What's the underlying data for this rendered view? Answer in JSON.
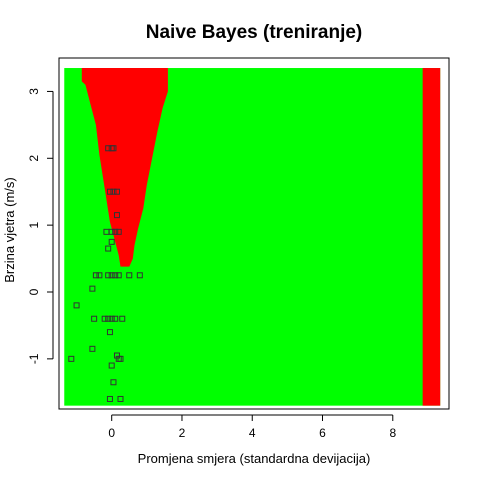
{
  "chart_data": {
    "type": "scatter",
    "title": "Naive Bayes (treniranje)",
    "xlabel": "Promjena smjera (standardna devijacija)",
    "ylabel": "Brzina vjetra (m/s)",
    "xlim": [
      -1.5,
      9.6
    ],
    "ylim": [
      -1.75,
      3.5
    ],
    "xticks": [
      0,
      2,
      4,
      6,
      8
    ],
    "yticks": [
      -1,
      0,
      1,
      2,
      3
    ],
    "xtick_labels": [
      "0",
      "2",
      "4",
      "6",
      "8"
    ],
    "ytick_labels": [
      "-1",
      "0",
      "1",
      "2",
      "3"
    ],
    "grid": false,
    "background_grid": {
      "x_range": [
        -1.35,
        9.35
      ],
      "y_range": [
        -1.7,
        3.35
      ],
      "default_class": "green",
      "colors": {
        "red": "#ff0000",
        "green": "#00ff00"
      },
      "red_region_outline": [
        [
          -0.85,
          3.35
        ],
        [
          1.6,
          3.35
        ],
        [
          1.6,
          3.0
        ],
        [
          1.45,
          2.75
        ],
        [
          1.3,
          2.4
        ],
        [
          1.15,
          2.0
        ],
        [
          1.0,
          1.6
        ],
        [
          0.9,
          1.25
        ],
        [
          0.75,
          0.95
        ],
        [
          0.65,
          0.7
        ],
        [
          0.6,
          0.5
        ],
        [
          0.5,
          0.38
        ],
        [
          0.25,
          0.38
        ],
        [
          0.2,
          0.55
        ],
        [
          0.1,
          0.75
        ],
        [
          -0.05,
          1.05
        ],
        [
          -0.2,
          1.55
        ],
        [
          -0.35,
          2.05
        ],
        [
          -0.45,
          2.5
        ],
        [
          -0.6,
          2.8
        ],
        [
          -0.75,
          3.1
        ],
        [
          -0.85,
          3.15
        ]
      ],
      "red_strip_x": [
        8.85,
        9.35
      ]
    },
    "series": [
      {
        "marker": "square",
        "points": [
          [
            -0.1,
            2.15
          ],
          [
            0.0,
            2.15
          ],
          [
            0.05,
            2.15
          ],
          [
            -0.05,
            1.5
          ],
          [
            0.05,
            1.5
          ],
          [
            0.15,
            1.5
          ],
          [
            0.15,
            1.15
          ],
          [
            -0.15,
            0.9
          ],
          [
            0.0,
            0.9
          ],
          [
            0.1,
            0.9
          ],
          [
            0.2,
            0.9
          ],
          [
            0.0,
            0.75
          ],
          [
            -0.1,
            0.65
          ],
          [
            -0.45,
            0.25
          ],
          [
            -0.35,
            0.25
          ],
          [
            -0.1,
            0.25
          ],
          [
            0.0,
            0.25
          ],
          [
            0.1,
            0.25
          ],
          [
            0.2,
            0.25
          ],
          [
            0.5,
            0.25
          ],
          [
            0.8,
            0.25
          ],
          [
            -0.55,
            0.05
          ],
          [
            -1.0,
            -0.2
          ],
          [
            -0.5,
            -0.4
          ],
          [
            -0.2,
            -0.4
          ],
          [
            -0.1,
            -0.4
          ],
          [
            0.0,
            -0.4
          ],
          [
            0.1,
            -0.4
          ],
          [
            0.3,
            -0.4
          ],
          [
            -0.05,
            -0.6
          ],
          [
            -0.55,
            -0.85
          ],
          [
            -1.15,
            -1.0
          ],
          [
            0.15,
            -0.95
          ],
          [
            0.2,
            -1.0
          ],
          [
            0.25,
            -1.0
          ],
          [
            0.0,
            -1.1
          ],
          [
            0.05,
            -1.35
          ],
          [
            -0.05,
            -1.6
          ],
          [
            0.25,
            -1.6
          ]
        ]
      }
    ]
  }
}
